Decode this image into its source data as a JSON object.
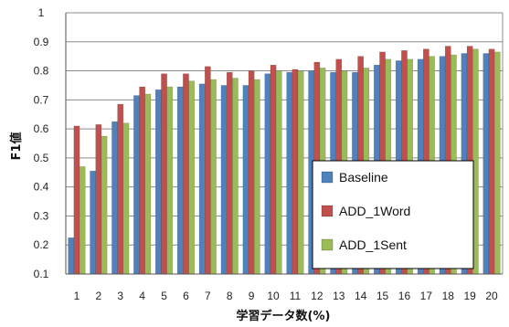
{
  "chart_data": {
    "type": "bar",
    "xlabel": "学習データ数(%)",
    "ylabel": "F1値",
    "ylim": [
      0.1,
      1.0
    ],
    "yticks": [
      "0.1",
      "0.2",
      "0.3",
      "0.4",
      "0.5",
      "0.6",
      "0.7",
      "0.8",
      "0.9",
      "1"
    ],
    "categories": [
      "1",
      "2",
      "3",
      "4",
      "5",
      "6",
      "7",
      "8",
      "9",
      "10",
      "11",
      "12",
      "13",
      "14",
      "15",
      "16",
      "17",
      "18",
      "19",
      "20"
    ],
    "grid": true,
    "legend_position": "lower-right",
    "series": [
      {
        "name": "Baseline",
        "color": "#4F81BD",
        "values": [
          0.225,
          0.455,
          0.625,
          0.715,
          0.735,
          0.745,
          0.755,
          0.75,
          0.75,
          0.79,
          0.795,
          0.8,
          0.795,
          0.795,
          0.82,
          0.835,
          0.84,
          0.85,
          0.86,
          0.86
        ]
      },
      {
        "name": "ADD_1Word",
        "color": "#C0504D",
        "values": [
          0.61,
          0.615,
          0.685,
          0.745,
          0.79,
          0.79,
          0.815,
          0.795,
          0.8,
          0.82,
          0.805,
          0.83,
          0.84,
          0.85,
          0.865,
          0.87,
          0.875,
          0.885,
          0.885,
          0.875
        ]
      },
      {
        "name": "ADD_1Sent",
        "color": "#9BBB59",
        "values": [
          0.47,
          0.575,
          0.62,
          0.72,
          0.745,
          0.765,
          0.77,
          0.775,
          0.77,
          0.8,
          0.8,
          0.81,
          0.8,
          0.81,
          0.84,
          0.84,
          0.85,
          0.855,
          0.875,
          0.865
        ]
      }
    ]
  }
}
